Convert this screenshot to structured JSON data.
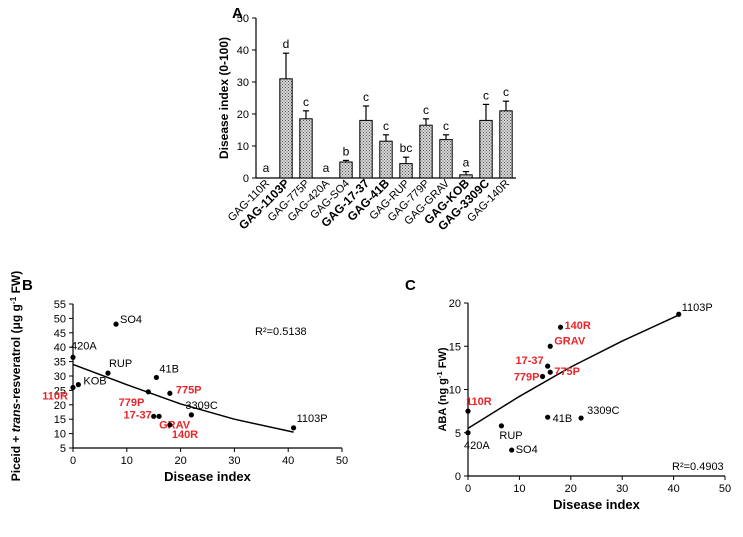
{
  "chart_data": [
    {
      "panel": "A",
      "type": "bar",
      "title": "",
      "ylabel": "Disease index (0-100)",
      "xlabel": "",
      "ylim": [
        0,
        50
      ],
      "yticks": [
        0,
        10,
        20,
        30,
        40,
        50
      ],
      "categories": [
        "GAG-110R",
        "GAG-1103P",
        "GAG-775P",
        "GAG-420A",
        "GAG-SO4",
        "GAG-17-37",
        "GAG-41B",
        "GAG-RUP",
        "GAG-779P",
        "GAG-GRAV",
        "GAG-KOB",
        "GAG-3309C",
        "GAG-140R"
      ],
      "bold_categories": [
        "GAG-1103P",
        "GAG-17-37",
        "GAG-41B",
        "GAG-KOB",
        "GAG-3309C"
      ],
      "values": [
        0,
        31,
        18.5,
        0,
        5,
        18,
        11.5,
        4.5,
        16.5,
        12,
        1,
        18,
        21
      ],
      "errors": [
        0,
        8,
        2.5,
        0,
        0.5,
        4.5,
        2,
        2,
        2,
        1.5,
        1,
        5,
        3
      ],
      "letters": [
        "a",
        "d",
        "c",
        "a",
        "b",
        "c",
        "c",
        "bc",
        "c",
        "c",
        "a",
        "c",
        "c"
      ]
    },
    {
      "panel": "B",
      "type": "scatter",
      "xlabel": "Disease index",
      "ylabel_pre": "Piceid + ",
      "ylabel_it": "trans",
      "ylabel_post": "-resveratrol (μg g",
      "ylabel_sup": "-1",
      "ylabel_end": " FW)",
      "xlim": [
        0,
        50
      ],
      "ylim": [
        5,
        55
      ],
      "xticks": [
        0,
        10,
        20,
        30,
        40,
        50
      ],
      "yticks": [
        5,
        10,
        15,
        20,
        25,
        30,
        35,
        40,
        45,
        50,
        55
      ],
      "r2": "R²=0.5138",
      "fit_curve": [
        [
          0,
          34
        ],
        [
          10,
          27
        ],
        [
          20,
          20.3
        ],
        [
          30,
          15
        ],
        [
          41,
          10.5
        ]
      ],
      "points": [
        {
          "x": 0,
          "y": 26,
          "label": "110R",
          "red": true
        },
        {
          "x": 41,
          "y": 12,
          "label": "1103P",
          "red": false
        },
        {
          "x": 18,
          "y": 24,
          "label": "775P",
          "red": true
        },
        {
          "x": 0,
          "y": 36.5,
          "label": "420A",
          "red": false
        },
        {
          "x": 8,
          "y": 48,
          "label": "SO4",
          "red": false
        },
        {
          "x": 15,
          "y": 16,
          "label": "17-37",
          "red": true
        },
        {
          "x": 15.5,
          "y": 29.5,
          "label": "41B",
          "red": false
        },
        {
          "x": 6.5,
          "y": 31,
          "label": "RUP",
          "red": false
        },
        {
          "x": 14,
          "y": 24.5,
          "label": "779P",
          "red": true
        },
        {
          "x": 16,
          "y": 16,
          "label": "GRAV",
          "red": true
        },
        {
          "x": 1,
          "y": 27,
          "label": "KOB",
          "red": false
        },
        {
          "x": 22,
          "y": 16.5,
          "label": "3309C",
          "red": false
        },
        {
          "x": 18,
          "y": 13,
          "label": "140R",
          "red": true
        }
      ]
    },
    {
      "panel": "C",
      "type": "scatter",
      "xlabel": "Disease index",
      "ylabel_pre": "ABA (ng g",
      "ylabel_sup": "-1",
      "ylabel_end": " FW)",
      "xlim": [
        0,
        50
      ],
      "ylim": [
        0,
        20
      ],
      "xticks": [
        0,
        10,
        20,
        30,
        40,
        50
      ],
      "yticks": [
        0,
        5,
        10,
        15,
        20
      ],
      "r2": "R²=0.4903",
      "fit_curve": [
        [
          0,
          5.5
        ],
        [
          10,
          9.2
        ],
        [
          20,
          12.6
        ],
        [
          30,
          15.6
        ],
        [
          41,
          18.6
        ]
      ],
      "points": [
        {
          "x": 0,
          "y": 7.5,
          "label": "110R",
          "red": true
        },
        {
          "x": 41,
          "y": 18.7,
          "label": "1103P",
          "red": false
        },
        {
          "x": 16,
          "y": 12,
          "label": "775P",
          "red": true
        },
        {
          "x": 0,
          "y": 5,
          "label": "420A",
          "red": false
        },
        {
          "x": 8.5,
          "y": 3,
          "label": "SO4",
          "red": false
        },
        {
          "x": 15.5,
          "y": 12.7,
          "label": "17-37",
          "red": true
        },
        {
          "x": 15.5,
          "y": 6.8,
          "label": "41B",
          "red": false
        },
        {
          "x": 6.5,
          "y": 5.8,
          "label": "RUP",
          "red": false
        },
        {
          "x": 14.5,
          "y": 11.5,
          "label": "779P",
          "red": true
        },
        {
          "x": 16,
          "y": 15,
          "label": "GRAV",
          "red": true
        },
        {
          "x": 22,
          "y": 6.7,
          "label": "3309C",
          "red": false
        },
        {
          "x": 18,
          "y": 17.2,
          "label": "140R",
          "red": true
        }
      ]
    }
  ]
}
